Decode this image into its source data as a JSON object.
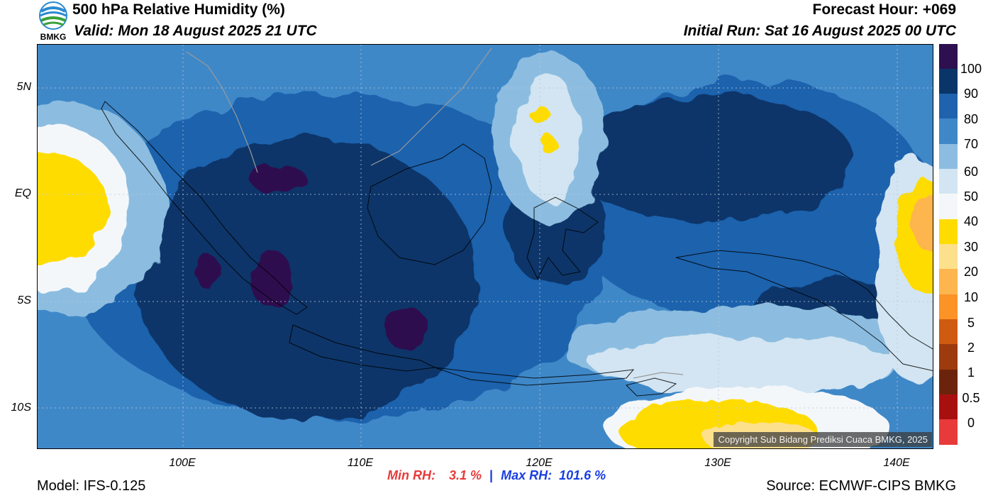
{
  "header": {
    "title": "500 hPa Relative Humidity (%)",
    "valid": "Valid: Mon 18 August 2025 21 UTC",
    "forecast_hour": "Forecast Hour: +069",
    "initial_run": "Initial Run: Sat 16 August 2025 00 UTC",
    "logo_text": "BMKG"
  },
  "map": {
    "lat_labels": [
      "5N",
      "EQ",
      "5S",
      "10S"
    ],
    "lon_labels": [
      "100E",
      "110E",
      "120E",
      "130E",
      "140E"
    ],
    "copyright": "Copyright Sub Bidang Prediksi Cuaca BMKG, 2025"
  },
  "colorbar": {
    "levels": [
      "100",
      "90",
      "80",
      "70",
      "60",
      "50",
      "40",
      "30",
      "20",
      "10",
      "5",
      "2",
      "1",
      "0.5",
      "0"
    ],
    "colors": [
      "#2e0f4f",
      "#0a3569",
      "#1f62ad",
      "#3f88c8",
      "#8cbde0",
      "#d3e5f2",
      "#f4f7fa",
      "#ffdc00",
      "#fde08c",
      "#fdb54e",
      "#fb9326",
      "#d05a10",
      "#9d3a0e",
      "#6c230c",
      "#a81010",
      "#e83a3a"
    ]
  },
  "stats": {
    "min_label": "Min RH:",
    "min_value": "3.1 %",
    "separator": "|",
    "max_label": "Max RH:",
    "max_value": "101.6 %"
  },
  "footer": {
    "model": "Model: IFS-0.125",
    "source": "Source: ECMWF-CIPS BMKG"
  }
}
